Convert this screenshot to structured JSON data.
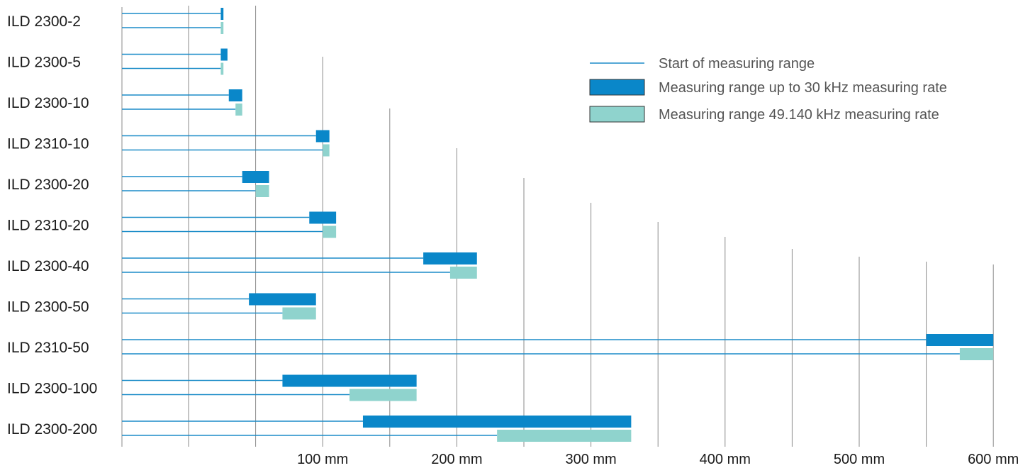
{
  "chart_data": {
    "type": "bar",
    "title": "",
    "xlabel": "",
    "ylabel": "",
    "x_unit": "mm",
    "xlim": [
      -50,
      600
    ],
    "grid": true,
    "gridlines_x": [
      0,
      50,
      100,
      150,
      200,
      250,
      300,
      350,
      400,
      450,
      500,
      550,
      600
    ],
    "x_tick_labels": [
      {
        "value": 100,
        "label": "100 mm"
      },
      {
        "value": 200,
        "label": "200 mm"
      },
      {
        "value": 300,
        "label": "300 mm"
      },
      {
        "value": 400,
        "label": "400 mm"
      },
      {
        "value": 500,
        "label": "500 mm"
      },
      {
        "value": 600,
        "label": "600 mm"
      }
    ],
    "legend_position": "top-right",
    "legend": [
      {
        "key": "start",
        "label": "Start of measuring range",
        "style": "line"
      },
      {
        "key": "range_30khz",
        "label": "Measuring range up to 30 kHz measuring rate",
        "style": "bar"
      },
      {
        "key": "range_49khz",
        "label": "Measuring range 49.140 kHz measuring rate",
        "style": "bar"
      }
    ],
    "colors": {
      "start_line": "#1b8cc8",
      "range_30khz": "#0a87c9",
      "range_49khz": "#8fd3cd",
      "gridline": "#8a8a8a",
      "legend_border": "#333333"
    },
    "categories": [
      "ILD 2300-2",
      "ILD 2300-5",
      "ILD 2300-10",
      "ILD 2310-10",
      "ILD 2300-20",
      "ILD 2310-20",
      "ILD 2300-40",
      "ILD 2300-50",
      "ILD 2310-50",
      "ILD 2300-100",
      "ILD 2300-200"
    ],
    "series": [
      {
        "name": "Measuring range up to 30 kHz measuring rate",
        "key": "range_30khz",
        "start": [
          24,
          24,
          30,
          95,
          40,
          90,
          175,
          45,
          550,
          70,
          130
        ],
        "end": [
          26,
          29,
          40,
          105,
          60,
          110,
          215,
          95,
          600,
          170,
          330
        ]
      },
      {
        "name": "Measuring range 49.140 kHz measuring rate",
        "key": "range_49khz",
        "start": [
          24,
          24,
          35,
          100,
          50,
          100,
          195,
          70,
          575,
          120,
          230
        ],
        "end": [
          26,
          26,
          40,
          105,
          60,
          110,
          215,
          95,
          600,
          170,
          330
        ]
      }
    ]
  }
}
